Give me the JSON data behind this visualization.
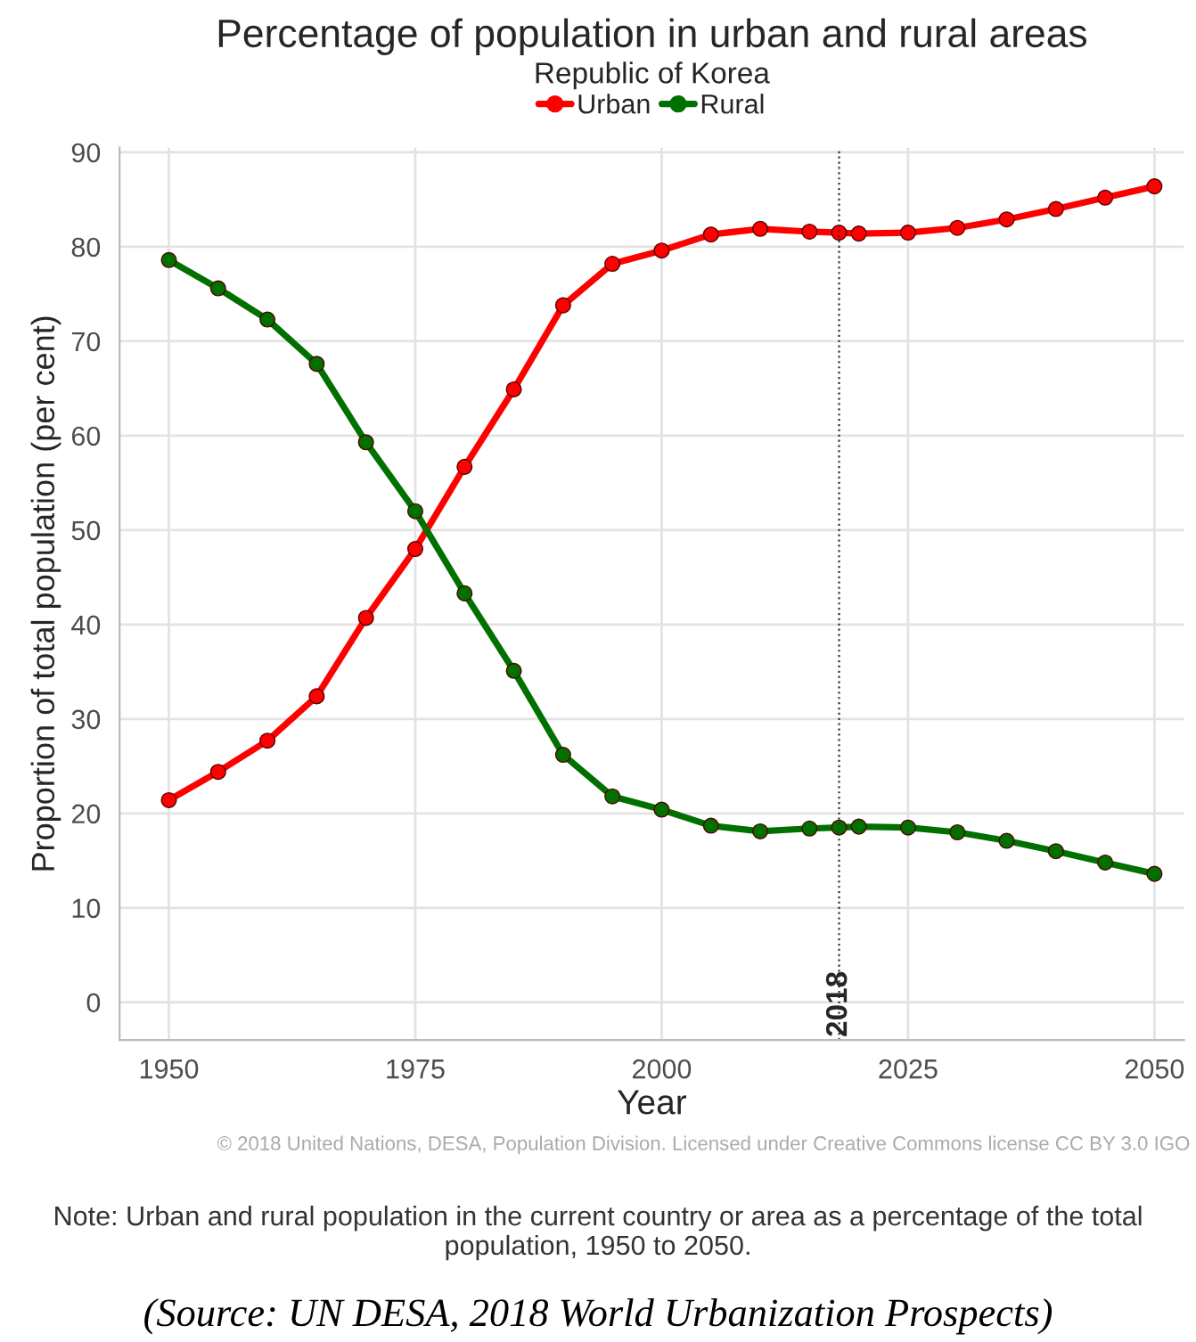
{
  "chart_data": {
    "type": "line",
    "title": "Percentage of population in urban and rural areas",
    "subtitle": "Republic of Korea",
    "xlabel": "Year",
    "ylabel": "Proportion of total population (per cent)",
    "x": [
      1950,
      1955,
      1960,
      1965,
      1970,
      1975,
      1980,
      1985,
      1990,
      1995,
      2000,
      2005,
      2010,
      2015,
      2018,
      2020,
      2025,
      2030,
      2035,
      2040,
      2045,
      2050
    ],
    "series": [
      {
        "name": "Urban",
        "color": "#ff0000",
        "values": [
          21.4,
          24.4,
          27.7,
          32.4,
          40.7,
          48.0,
          56.7,
          64.9,
          73.8,
          78.2,
          79.6,
          81.3,
          81.9,
          81.6,
          81.5,
          81.4,
          81.5,
          82.0,
          82.9,
          84.0,
          85.2,
          86.4
        ]
      },
      {
        "name": "Rural",
        "color": "#007000",
        "values": [
          78.6,
          75.6,
          72.3,
          67.6,
          59.3,
          52.0,
          43.3,
          35.1,
          26.2,
          21.8,
          20.4,
          18.7,
          18.1,
          18.4,
          18.5,
          18.6,
          18.5,
          18.0,
          17.1,
          16.0,
          14.8,
          13.6
        ]
      }
    ],
    "xlim": [
      1945,
      2053
    ],
    "xticks": [
      1950,
      1975,
      2000,
      2025,
      2050
    ],
    "ylim": [
      -4,
      90.5
    ],
    "yticks": [
      0,
      10,
      20,
      30,
      40,
      50,
      60,
      70,
      80,
      90
    ],
    "ref_lines": [
      {
        "axis": "x",
        "value": 2018,
        "label": "2018",
        "line_style": "dotted"
      }
    ],
    "grid": true,
    "legend": "top",
    "marker": "circle",
    "line_style": "solid",
    "annotations": [
      "© 2018 United Nations, DESA, Population Division. Licensed under Creative Commons license CC BY 3.0 IGO",
      "Note: Urban and rural population in the current country or area as a percentage of the total population, 1950 to 2050.",
      "(Source: UN DESA, 2018 World Urbanization Prospects)"
    ]
  }
}
